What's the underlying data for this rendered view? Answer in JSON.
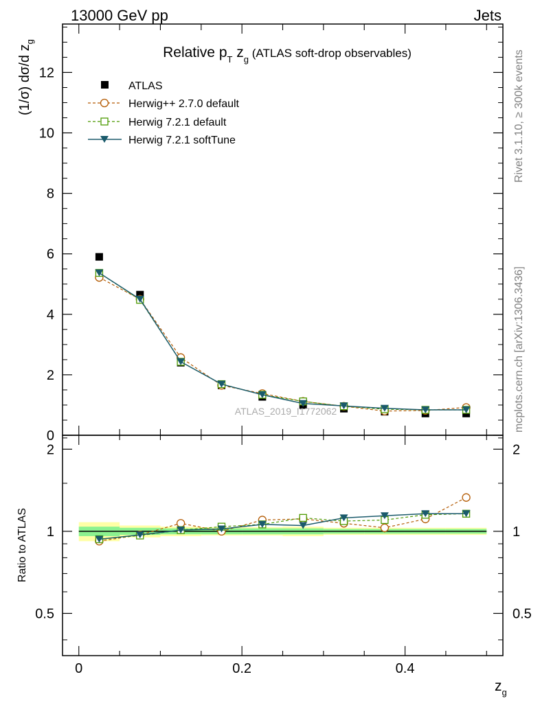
{
  "header": {
    "left": "13000 GeV pp",
    "right": "Jets"
  },
  "side_labels": {
    "rivet": "Rivet 3.1.10, ≥ 300k events",
    "mcplots": "mcplots.cern.ch [arXiv:1306.3436]"
  },
  "chart_data": [
    {
      "type": "scatter",
      "panel": "main",
      "title": "Relative pT zg (ATLAS soft-drop observables)",
      "title_parts": {
        "pre": "Relative p",
        "sub1": "T",
        "mid": " z",
        "sub2": "g",
        "post": " (ATLAS soft-drop observables)"
      },
      "analysis_label": "ATLAS_2019_I1772062",
      "xlabel": "z_g",
      "xlabel_parts": {
        "main": "z",
        "sub": "g"
      },
      "ylabel": "(1/σ) dσ/d z_g",
      "ylabel_parts": {
        "main": "(1/σ) dσ/d z",
        "sub": "g"
      },
      "xlim": [
        -0.02,
        0.52
      ],
      "ylim": [
        0,
        13.6
      ],
      "yticks": [
        0,
        2,
        4,
        6,
        8,
        10,
        12
      ],
      "x": [
        0.025,
        0.075,
        0.125,
        0.175,
        0.225,
        0.275,
        0.325,
        0.375,
        0.425,
        0.475
      ],
      "series": [
        {
          "name": "ATLAS",
          "color": "#000000",
          "marker": "square-filled",
          "line": "none",
          "values": [
            5.9,
            4.65,
            2.4,
            1.65,
            1.27,
            1.0,
            0.88,
            0.78,
            0.72,
            0.72
          ]
        },
        {
          "name": "Herwig++ 2.7.0 default",
          "color": "#b35900",
          "marker": "circle-open",
          "line": "dashed",
          "values": [
            5.22,
            4.5,
            2.57,
            1.65,
            1.38,
            1.12,
            0.96,
            0.8,
            0.82,
            0.92
          ]
        },
        {
          "name": "Herwig 7.2.1 default",
          "color": "#4c9900",
          "marker": "square-open",
          "line": "dashed",
          "values": [
            5.37,
            4.48,
            2.43,
            1.69,
            1.34,
            1.12,
            0.96,
            0.86,
            0.84,
            0.84
          ]
        },
        {
          "name": "Herwig 7.2.1 softTune",
          "color": "#1a5a6b",
          "marker": "triangle-down-filled",
          "line": "solid",
          "values": [
            5.37,
            4.5,
            2.43,
            1.69,
            1.34,
            1.05,
            0.97,
            0.89,
            0.84,
            0.84
          ]
        }
      ]
    },
    {
      "type": "scatter",
      "panel": "ratio",
      "ylabel": "Ratio to ATLAS",
      "xlabel": "z_g",
      "xlim": [
        -0.02,
        0.52
      ],
      "ylim": [
        0.35,
        2.25
      ],
      "yticks": [
        0.5,
        1,
        2
      ],
      "ytick_labels": [
        "0.5",
        "1",
        "2"
      ],
      "xticks": [
        0,
        0.2,
        0.4
      ],
      "xtick_labels": [
        "0",
        "0.2",
        "0.4"
      ],
      "x": [
        0.025,
        0.075,
        0.125,
        0.175,
        0.225,
        0.275,
        0.325,
        0.375,
        0.425,
        0.475
      ],
      "band_edges": [
        0,
        0.05,
        0.1,
        0.15,
        0.2,
        0.25,
        0.3,
        0.35,
        0.4,
        0.45,
        0.5
      ],
      "band_stat": [
        0.04,
        0.03,
        0.025,
        0.025,
        0.025,
        0.025,
        0.02,
        0.02,
        0.02,
        0.02
      ],
      "band_total": [
        0.08,
        0.05,
        0.04,
        0.035,
        0.035,
        0.04,
        0.03,
        0.03,
        0.03,
        0.03
      ],
      "series": [
        {
          "name": "Herwig++ 2.7.0 default",
          "color": "#b35900",
          "marker": "circle-open",
          "line": "dashed",
          "values": [
            0.92,
            0.97,
            1.07,
            1.0,
            1.1,
            1.11,
            1.07,
            1.03,
            1.11,
            1.33
          ],
          "err": [
            0.01,
            0.01,
            0.02,
            0.03,
            0.03,
            0.03,
            0.03,
            0.04,
            0.04,
            0.04
          ]
        },
        {
          "name": "Herwig 7.2.1 default",
          "color": "#4c9900",
          "marker": "square-open",
          "line": "dashed",
          "values": [
            0.935,
            0.965,
            1.01,
            1.04,
            1.06,
            1.12,
            1.09,
            1.1,
            1.15,
            1.16
          ],
          "err": [
            0.01,
            0.01,
            0.01,
            0.02,
            0.02,
            0.02,
            0.02,
            0.03,
            0.03,
            0.03
          ]
        },
        {
          "name": "Herwig 7.2.1 softTune",
          "color": "#1a5a6b",
          "marker": "triangle-down-filled",
          "line": "solid",
          "values": [
            0.935,
            0.97,
            1.01,
            1.02,
            1.06,
            1.05,
            1.12,
            1.14,
            1.16,
            1.16
          ],
          "err": [
            0.01,
            0.01,
            0.01,
            0.02,
            0.02,
            0.02,
            0.02,
            0.02,
            0.02,
            0.02
          ]
        }
      ]
    }
  ]
}
